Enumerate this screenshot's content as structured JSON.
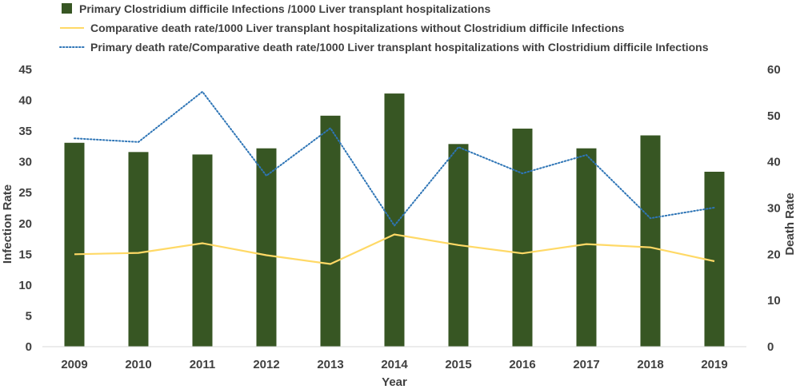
{
  "chart_data": {
    "type": "bar",
    "categories": [
      "2009",
      "2010",
      "2011",
      "2012",
      "2013",
      "2014",
      "2015",
      "2016",
      "2017",
      "2018",
      "2019"
    ],
    "xlabel": "Year",
    "ylabel": "Infection Rate",
    "y2label": "Death Rate",
    "ylim": [
      0,
      45
    ],
    "y2lim": [
      0,
      60
    ],
    "yticks": [
      0,
      5,
      10,
      15,
      20,
      25,
      30,
      35,
      40,
      45
    ],
    "y2ticks": [
      0,
      10,
      20,
      30,
      40,
      50,
      60
    ],
    "grid": false,
    "legend_position": "top",
    "series": [
      {
        "name": "Primary Clostridium difficile Infections /1000  Liver transplant  hospitalizations",
        "type": "bar",
        "axis": "left",
        "color": "#375623",
        "values": [
          33.1,
          31.6,
          31.2,
          32.2,
          37.5,
          41.1,
          32.9,
          35.4,
          32.2,
          34.3,
          28.4
        ]
      },
      {
        "name": "Comparative death rate/1000  Liver transplant  hospitalizations without  Clostridium difficile Infections",
        "type": "line",
        "style": "solid",
        "axis": "right",
        "color": "#FFD966",
        "values": [
          20.0,
          20.3,
          22.4,
          19.8,
          17.9,
          24.3,
          22.0,
          20.2,
          22.2,
          21.5,
          18.5
        ]
      },
      {
        "name": "Primary death rate/Comparative death rate/1000  Liver transplant  hospitalizations with  Clostridium difficile Infections",
        "type": "line",
        "style": "dotted",
        "axis": "right",
        "color": "#2E75B6",
        "values": [
          45.1,
          44.3,
          55.2,
          37.0,
          47.3,
          26.2,
          43.2,
          37.5,
          41.5,
          27.8,
          30.1
        ]
      }
    ]
  }
}
